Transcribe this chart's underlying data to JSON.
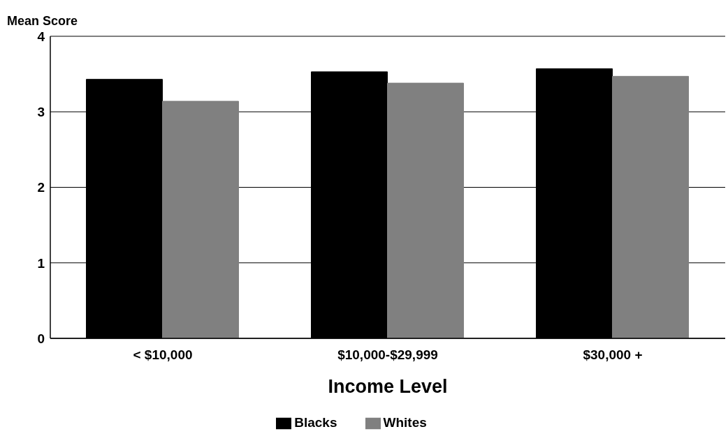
{
  "chart_data": {
    "type": "bar",
    "ylabel": "Mean Score",
    "xlabel": "Income Level",
    "categories": [
      "< $10,000",
      "$10,000-$29,999",
      "$30,000 +"
    ],
    "series": [
      {
        "name": "Blacks",
        "color": "#000000",
        "values": [
          3.43,
          3.53,
          3.57
        ]
      },
      {
        "name": "Whites",
        "color": "#808080",
        "values": [
          3.14,
          3.38,
          3.47
        ]
      }
    ],
    "ylim": [
      0,
      4
    ],
    "yticks": [
      0,
      1,
      2,
      3,
      4
    ],
    "grid": "y",
    "legend": "bottom"
  }
}
